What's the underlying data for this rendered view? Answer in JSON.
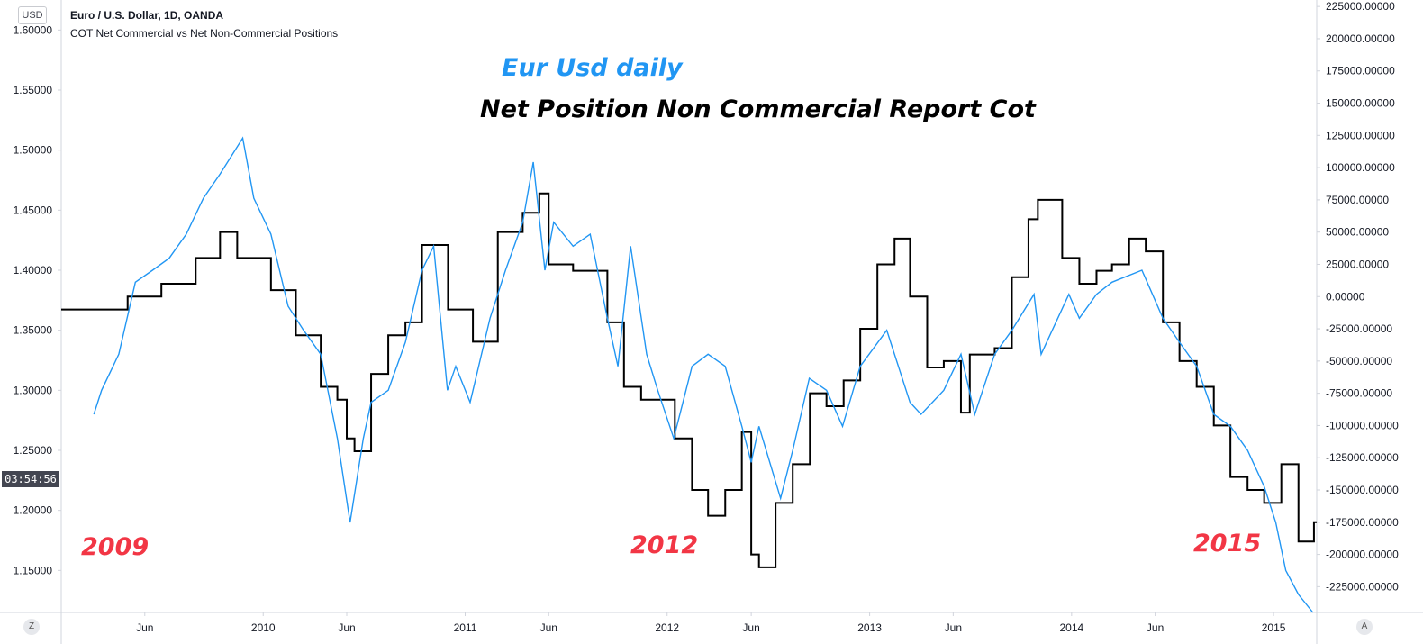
{
  "header": {
    "symbol_title": "Euro / U.S. Dollar, 1D, OANDA",
    "indicator_title": "COT Net Commercial vs Net Non-Commercial Positions",
    "currency_badge": "USD",
    "countdown": "03:54:56",
    "left_corner": "Z",
    "right_corner": "A"
  },
  "annotations": {
    "eurusd_label": "Eur Usd daily",
    "cot_label": "Net Position Non Commercial Report Cot",
    "year_2009": "2009",
    "year_2012": "2012",
    "year_2015": "2015"
  },
  "colors": {
    "price_line": "#2196f3",
    "cot_line": "#000000",
    "annotation_blue": "#2196f3",
    "annotation_black": "#000000",
    "annotation_red": "#f23645",
    "axis_line": "#d1d4dc"
  },
  "chart_data": [
    {
      "type": "line",
      "name": "Euro / U.S. Dollar",
      "axis": "left",
      "ylim": [
        1.115,
        1.625
      ],
      "y_ticks": [
        "1.60000",
        "1.55000",
        "1.50000",
        "1.45000",
        "1.40000",
        "1.35000",
        "1.30000",
        "1.25000",
        "1.20000",
        "1.15000"
      ],
      "y_tick_values": [
        1.6,
        1.55,
        1.5,
        1.45,
        1.4,
        1.35,
        1.3,
        1.25,
        1.2,
        1.15
      ],
      "x": [
        "2009-03-01",
        "2009-03-15",
        "2009-04-15",
        "2009-05-15",
        "2009-06-15",
        "2009-07-15",
        "2009-08-15",
        "2009-09-15",
        "2009-10-15",
        "2009-11-25",
        "2009-12-15",
        "2010-01-15",
        "2010-02-15",
        "2010-03-15",
        "2010-04-15",
        "2010-05-15",
        "2010-06-07",
        "2010-07-01",
        "2010-07-15",
        "2010-08-15",
        "2010-09-15",
        "2010-10-15",
        "2010-11-05",
        "2010-11-30",
        "2010-12-15",
        "2011-01-10",
        "2011-02-15",
        "2011-03-15",
        "2011-04-15",
        "2011-05-04",
        "2011-05-25",
        "2011-06-10",
        "2011-07-15",
        "2011-08-15",
        "2011-09-15",
        "2011-10-04",
        "2011-10-27",
        "2011-11-25",
        "2011-12-15",
        "2012-01-13",
        "2012-02-15",
        "2012-03-15",
        "2012-04-15",
        "2012-05-15",
        "2012-06-01",
        "2012-06-15",
        "2012-07-24",
        "2012-08-15",
        "2012-09-14",
        "2012-10-15",
        "2012-11-13",
        "2012-12-15",
        "2013-02-01",
        "2013-03-15",
        "2013-04-04",
        "2013-05-15",
        "2013-06-15",
        "2013-07-10",
        "2013-08-15",
        "2013-09-15",
        "2013-10-25",
        "2013-11-07",
        "2013-12-27",
        "2014-01-15",
        "2014-02-15",
        "2014-03-15",
        "2014-05-08",
        "2014-06-15",
        "2014-07-15",
        "2014-08-15",
        "2014-09-15",
        "2014-10-15",
        "2014-11-15",
        "2014-12-15",
        "2015-01-05",
        "2015-01-23",
        "2015-02-15",
        "2015-03-13"
      ],
      "values": [
        1.28,
        1.3,
        1.33,
        1.39,
        1.4,
        1.41,
        1.43,
        1.46,
        1.48,
        1.51,
        1.46,
        1.43,
        1.37,
        1.35,
        1.33,
        1.26,
        1.19,
        1.26,
        1.29,
        1.3,
        1.34,
        1.4,
        1.42,
        1.3,
        1.32,
        1.29,
        1.36,
        1.4,
        1.44,
        1.49,
        1.4,
        1.44,
        1.42,
        1.43,
        1.36,
        1.32,
        1.42,
        1.33,
        1.3,
        1.26,
        1.32,
        1.33,
        1.32,
        1.27,
        1.24,
        1.27,
        1.21,
        1.25,
        1.31,
        1.3,
        1.27,
        1.32,
        1.35,
        1.29,
        1.28,
        1.3,
        1.33,
        1.28,
        1.33,
        1.35,
        1.38,
        1.33,
        1.38,
        1.36,
        1.38,
        1.39,
        1.4,
        1.36,
        1.34,
        1.32,
        1.28,
        1.27,
        1.25,
        1.22,
        1.19,
        1.15,
        1.13,
        1.05
      ]
    },
    {
      "type": "line",
      "name": "COT Net Non-Commercial Positions",
      "axis": "right",
      "ylim": [
        -245000,
        230000
      ],
      "y_ticks": [
        "225000.00000",
        "200000.00000",
        "175000.00000",
        "150000.00000",
        "125000.00000",
        "100000.00000",
        "75000.00000",
        "50000.00000",
        "25000.00000",
        "0.00000",
        "-25000.00000",
        "-50000.00000",
        "-75000.00000",
        "-100000.00000",
        "-125000.00000",
        "-150000.00000",
        "-175000.00000",
        "-200000.00000",
        "-225000.00000"
      ],
      "y_tick_values": [
        225000,
        200000,
        175000,
        150000,
        125000,
        100000,
        75000,
        50000,
        25000,
        0,
        -25000,
        -50000,
        -75000,
        -100000,
        -125000,
        -150000,
        -175000,
        -200000,
        -225000
      ],
      "x": [
        "2009-01-01",
        "2009-03-01",
        "2009-05-01",
        "2009-07-01",
        "2009-09-01",
        "2009-10-15",
        "2009-11-15",
        "2010-01-15",
        "2010-03-01",
        "2010-04-15",
        "2010-05-15",
        "2010-06-01",
        "2010-06-15",
        "2010-07-15",
        "2010-08-15",
        "2010-09-15",
        "2010-10-15",
        "2010-11-01",
        "2010-12-01",
        "2011-01-15",
        "2011-03-01",
        "2011-04-15",
        "2011-05-15",
        "2011-06-01",
        "2011-07-15",
        "2011-08-15",
        "2011-09-15",
        "2011-10-15",
        "2011-11-15",
        "2011-12-15",
        "2012-01-15",
        "2012-02-15",
        "2012-03-15",
        "2012-04-15",
        "2012-05-15",
        "2012-06-01",
        "2012-06-15",
        "2012-07-15",
        "2012-08-15",
        "2012-09-15",
        "2012-10-15",
        "2012-11-15",
        "2012-12-15",
        "2013-01-15",
        "2013-02-15",
        "2013-03-15",
        "2013-04-15",
        "2013-05-15",
        "2013-06-15",
        "2013-07-01",
        "2013-08-15",
        "2013-09-15",
        "2013-10-15",
        "2013-11-01",
        "2013-12-15",
        "2014-01-15",
        "2014-02-15",
        "2014-03-15",
        "2014-04-15",
        "2014-05-15",
        "2014-06-15",
        "2014-07-15",
        "2014-08-15",
        "2014-09-15",
        "2014-10-15",
        "2014-11-15",
        "2014-12-15",
        "2015-01-15",
        "2015-02-15",
        "2015-03-15"
      ],
      "values": [
        -10000,
        -10000,
        0,
        10000,
        30000,
        50000,
        30000,
        5000,
        -30000,
        -70000,
        -80000,
        -110000,
        -120000,
        -60000,
        -30000,
        -20000,
        40000,
        40000,
        -10000,
        -35000,
        50000,
        65000,
        80000,
        25000,
        20000,
        20000,
        -20000,
        -70000,
        -80000,
        -80000,
        -110000,
        -150000,
        -170000,
        -150000,
        -105000,
        -200000,
        -210000,
        -160000,
        -130000,
        -75000,
        -85000,
        -65000,
        -25000,
        25000,
        45000,
        0,
        -55000,
        -50000,
        -90000,
        -45000,
        -40000,
        15000,
        60000,
        75000,
        30000,
        10000,
        20000,
        25000,
        45000,
        35000,
        -20000,
        -50000,
        -70000,
        -100000,
        -140000,
        -150000,
        -160000,
        -130000,
        -190000,
        -175000
      ]
    }
  ],
  "x_axis": {
    "ticks": [
      {
        "label": "Jun",
        "date": "2009-06-01"
      },
      {
        "label": "2010",
        "date": "2010-01-01"
      },
      {
        "label": "Jun",
        "date": "2010-06-01"
      },
      {
        "label": "2011",
        "date": "2011-01-01"
      },
      {
        "label": "Jun",
        "date": "2011-06-01"
      },
      {
        "label": "2012",
        "date": "2012-01-01"
      },
      {
        "label": "Jun",
        "date": "2012-06-01"
      },
      {
        "label": "2013",
        "date": "2013-01-01"
      },
      {
        "label": "Jun",
        "date": "2013-06-01"
      },
      {
        "label": "2014",
        "date": "2014-01-01"
      },
      {
        "label": "Jun",
        "date": "2014-06-01"
      },
      {
        "label": "2015",
        "date": "2015-01-01"
      }
    ]
  }
}
